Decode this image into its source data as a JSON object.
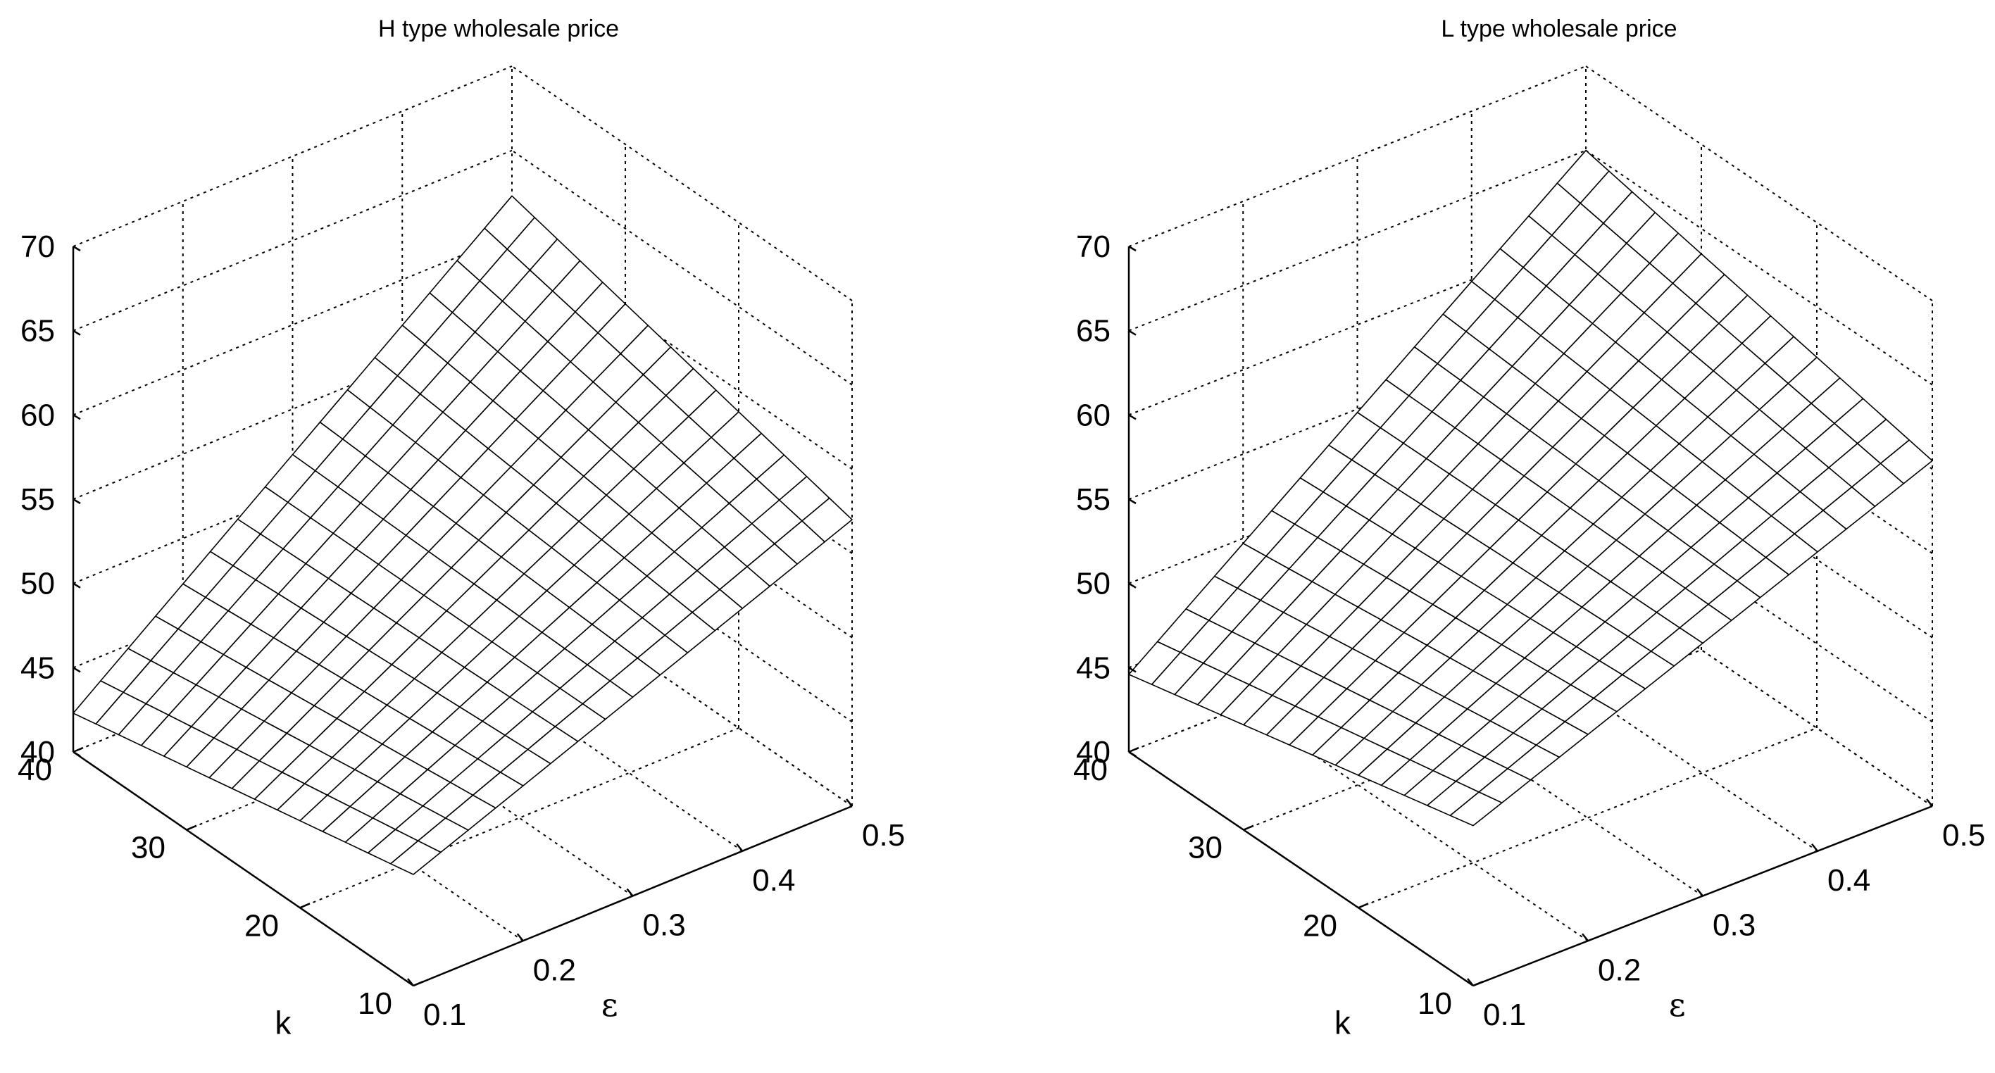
{
  "chart_data": [
    {
      "type": "surface",
      "title": "H type wholesale price",
      "xlabel": "ε",
      "ylabel": "k",
      "zlabel": "",
      "x_ticks": [
        "0.1",
        "0.2",
        "0.3",
        "0.4",
        "0.5"
      ],
      "y_ticks": [
        "10",
        "20",
        "30",
        "40"
      ],
      "z_ticks": [
        "40",
        "45",
        "50",
        "55",
        "60",
        "65",
        "70"
      ],
      "xlim": [
        0.1,
        0.5
      ],
      "ylim": [
        10,
        40
      ],
      "zlim": [
        40,
        70
      ],
      "grid": true,
      "mesh": {
        "nx": 16,
        "ny": 15
      },
      "corner_values": {
        "eps_0.1_k_10": 46.6,
        "eps_0.5_k_10": 57.0,
        "eps_0.1_k_40": 42.3,
        "eps_0.5_k_40": 62.3
      }
    },
    {
      "type": "surface",
      "title": "L type wholesale price",
      "xlabel": "ε",
      "ylabel": "k",
      "zlabel": "",
      "x_ticks": [
        "0.1",
        "0.2",
        "0.3",
        "0.4",
        "0.5"
      ],
      "y_ticks": [
        "10",
        "20",
        "30",
        "40"
      ],
      "z_ticks": [
        "40",
        "45",
        "50",
        "55",
        "60",
        "65",
        "70"
      ],
      "xlim": [
        0.1,
        0.5
      ],
      "ylim": [
        10,
        40
      ],
      "zlim": [
        40,
        70
      ],
      "grid": true,
      "mesh": {
        "nx": 16,
        "ny": 15
      },
      "corner_values": {
        "eps_0.1_k_10": 49.5,
        "eps_0.5_k_10": 60.5,
        "eps_0.1_k_40": 44.6,
        "eps_0.5_k_40": 65.0
      }
    }
  ]
}
